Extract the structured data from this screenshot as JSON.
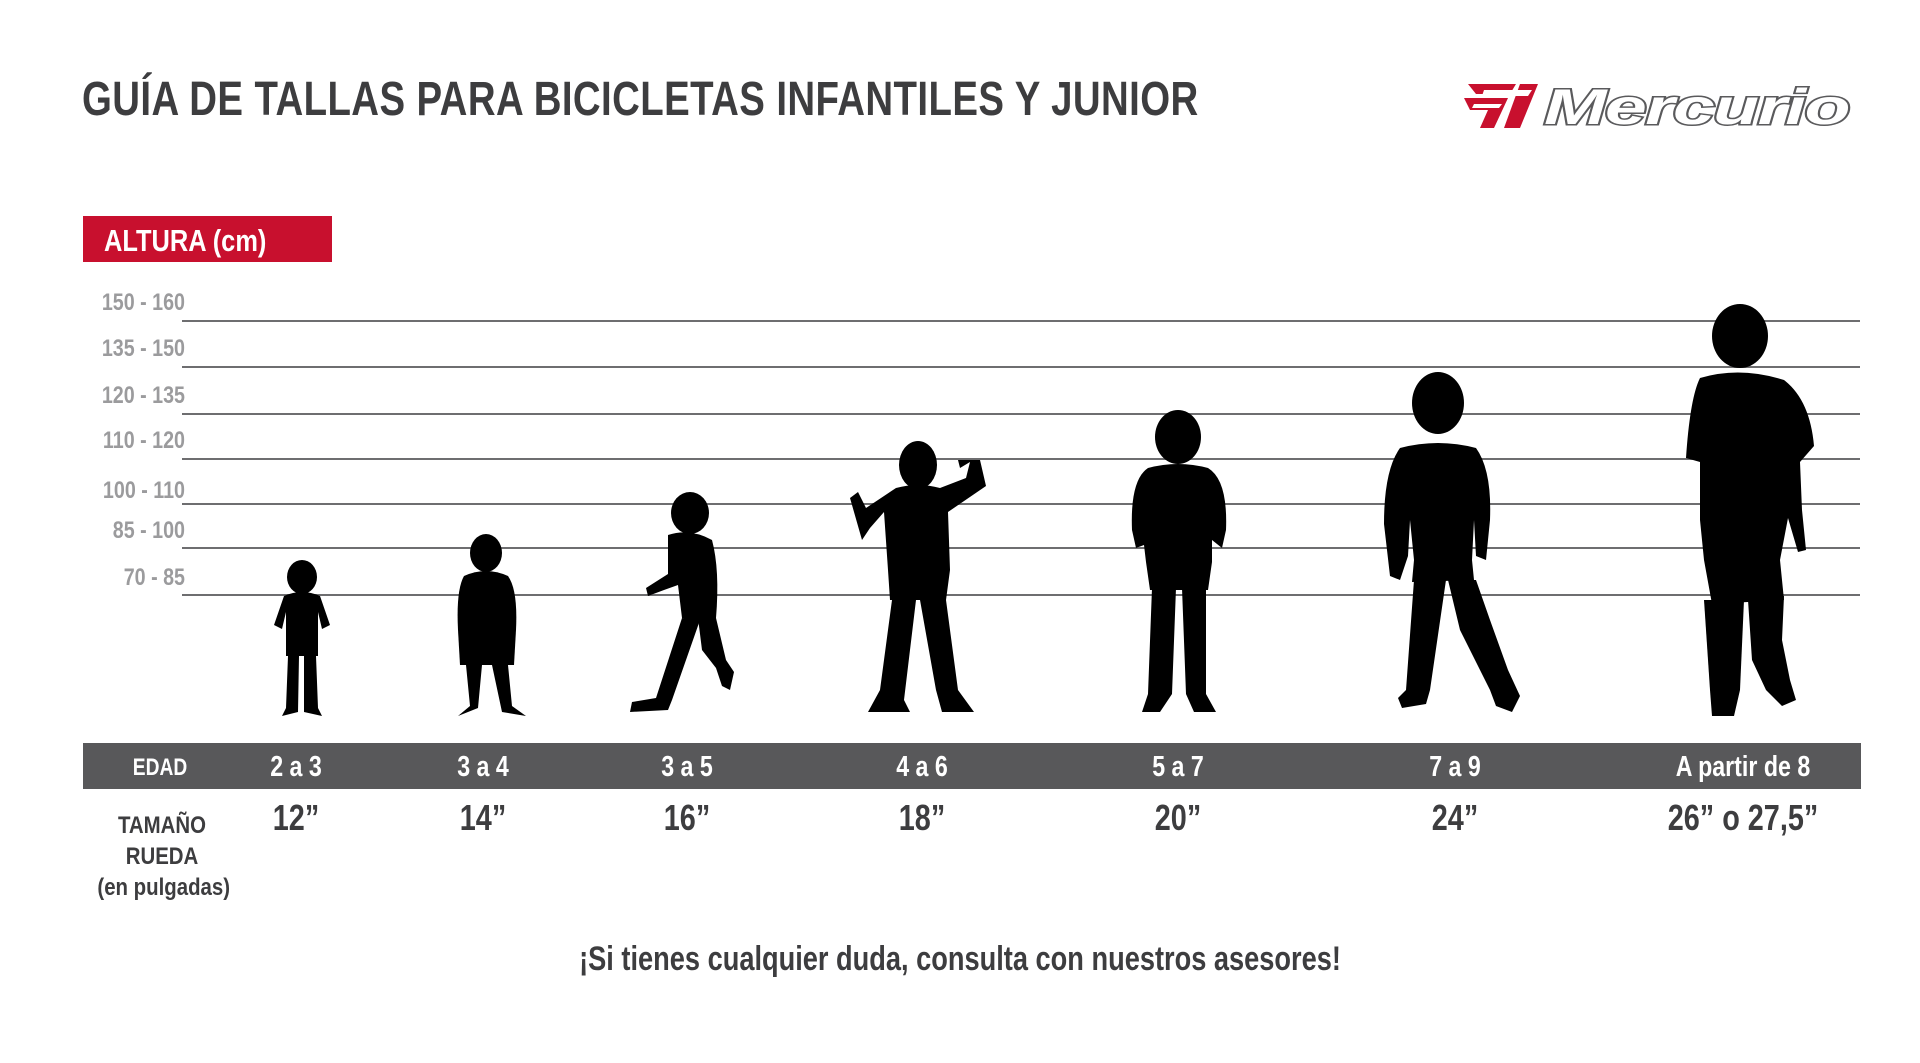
{
  "title": "GUÍA DE TALLAS PARA BICICLETAS INFANTILES Y JUNIOR",
  "brand": {
    "name": "Mercurio",
    "accent_color": "#c8102e",
    "text_color": "#5a5a5c"
  },
  "height_axis": {
    "label": "ALTURA (cm)",
    "ranges": [
      "150 - 160",
      "135 - 150",
      "120 - 135",
      "110 - 120",
      "100 - 110",
      "85 - 100",
      "70 - 85"
    ]
  },
  "age_row": {
    "label": "EDAD",
    "values": [
      "2 a 3",
      "3 a 4",
      "3 a 5",
      "4 a 6",
      "5 a 7",
      "7 a 9",
      "A partir de 8"
    ]
  },
  "wheel_row": {
    "label_lines": [
      "TAMAÑO",
      "RUEDA",
      "(en pulgadas)"
    ],
    "values": [
      "12”",
      "14”",
      "16”",
      "18”",
      "20”",
      "24”",
      "26” o 27,5”"
    ]
  },
  "footer": "¡Si tienes cualquier duda, consulta con nuestros asesores!",
  "icons": [
    "child-silhouette-icon"
  ],
  "colors": {
    "label_red": "#c8102e",
    "age_bar": "#58585a",
    "text_dark": "#3d3d3f",
    "range_gray": "#9b9b9d"
  }
}
